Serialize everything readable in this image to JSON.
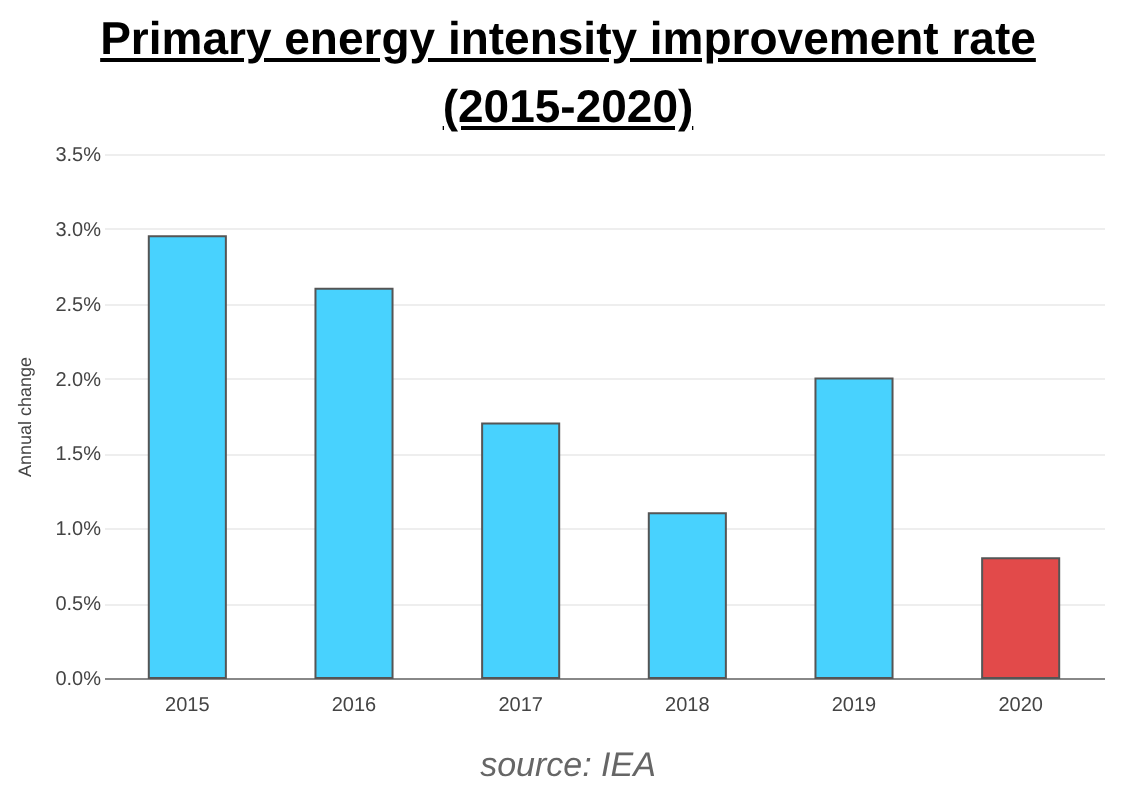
{
  "chart_data": {
    "type": "bar",
    "title": "Primary energy intensity improvement rate (2015-2020)",
    "ylabel": "Annual change",
    "categories": [
      "2015",
      "2016",
      "2017",
      "2018",
      "2019",
      "2020"
    ],
    "values": [
      2.95,
      2.6,
      1.7,
      1.1,
      2.0,
      0.8
    ],
    "colors": [
      "#48d2fe",
      "#48d2fe",
      "#48d2fe",
      "#48d2fe",
      "#48d2fe",
      "#e24a4a"
    ],
    "ylim": [
      0,
      3.5
    ],
    "yticks": [
      {
        "value": 0,
        "label": "0.0%"
      },
      {
        "value": 0.5,
        "label": "0.5%"
      },
      {
        "value": 1,
        "label": "1.0%"
      },
      {
        "value": 1.5,
        "label": "1.5%"
      },
      {
        "value": 2,
        "label": "2.0%"
      },
      {
        "value": 2.5,
        "label": "2.5%"
      },
      {
        "value": 3,
        "label": "3.0%"
      },
      {
        "value": 3.5,
        "label": "3.5%"
      }
    ],
    "grid": "y",
    "legend": false,
    "annotations": [
      "source: IEA"
    ]
  }
}
